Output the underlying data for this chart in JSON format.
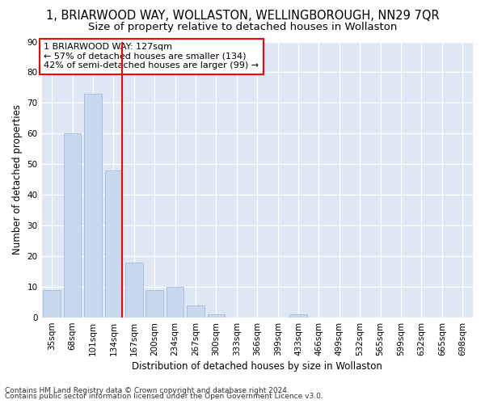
{
  "title": "1, BRIARWOOD WAY, WOLLASTON, WELLINGBOROUGH, NN29 7QR",
  "subtitle": "Size of property relative to detached houses in Wollaston",
  "xlabel": "Distribution of detached houses by size in Wollaston",
  "ylabel": "Number of detached properties",
  "categories": [
    "35sqm",
    "68sqm",
    "101sqm",
    "134sqm",
    "167sqm",
    "200sqm",
    "234sqm",
    "267sqm",
    "300sqm",
    "333sqm",
    "366sqm",
    "399sqm",
    "433sqm",
    "466sqm",
    "499sqm",
    "532sqm",
    "565sqm",
    "599sqm",
    "632sqm",
    "665sqm",
    "698sqm"
  ],
  "values": [
    9,
    60,
    73,
    48,
    18,
    9,
    10,
    4,
    1,
    0,
    0,
    0,
    1,
    0,
    0,
    0,
    0,
    0,
    0,
    0,
    0
  ],
  "bar_color": "#c8d8ee",
  "bar_edge_color": "#a8b8d8",
  "red_line_bar_index": 3,
  "annotation_text": "1 BRIARWOOD WAY: 127sqm\n← 57% of detached houses are smaller (134)\n42% of semi-detached houses are larger (99) →",
  "ylim": [
    0,
    90
  ],
  "yticks": [
    0,
    10,
    20,
    30,
    40,
    50,
    60,
    70,
    80,
    90
  ],
  "footer1": "Contains HM Land Registry data © Crown copyright and database right 2024.",
  "footer2": "Contains public sector information licensed under the Open Government Licence v3.0.",
  "bg_color": "#ffffff",
  "plot_bg_color": "#dde8f4",
  "grid_color": "#ffffff",
  "title_fontsize": 10.5,
  "subtitle_fontsize": 9.5,
  "axis_label_fontsize": 8.5,
  "tick_fontsize": 7.5,
  "footer_fontsize": 6.5
}
